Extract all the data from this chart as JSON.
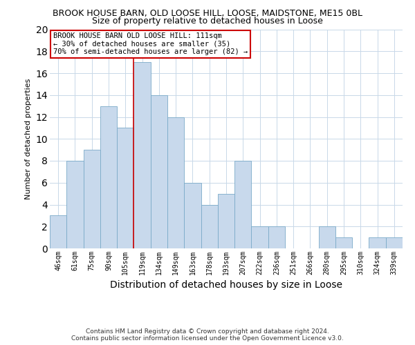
{
  "title": "BROOK HOUSE BARN, OLD LOOSE HILL, LOOSE, MAIDSTONE, ME15 0BL",
  "subtitle": "Size of property relative to detached houses in Loose",
  "xlabel": "Distribution of detached houses by size in Loose",
  "ylabel": "Number of detached properties",
  "bar_labels": [
    "46sqm",
    "61sqm",
    "75sqm",
    "90sqm",
    "105sqm",
    "119sqm",
    "134sqm",
    "149sqm",
    "163sqm",
    "178sqm",
    "193sqm",
    "207sqm",
    "222sqm",
    "236sqm",
    "251sqm",
    "266sqm",
    "280sqm",
    "295sqm",
    "310sqm",
    "324sqm",
    "339sqm"
  ],
  "bar_values": [
    3,
    8,
    9,
    13,
    11,
    17,
    14,
    12,
    6,
    4,
    5,
    8,
    2,
    2,
    0,
    0,
    2,
    1,
    0,
    1,
    1
  ],
  "bar_color": "#c8d9ec",
  "bar_edge_color": "#7aaac8",
  "ylim": [
    0,
    20
  ],
  "yticks": [
    0,
    2,
    4,
    6,
    8,
    10,
    12,
    14,
    16,
    18,
    20
  ],
  "vline_x_index": 5,
  "vline_color": "#cc0000",
  "annotation_title": "BROOK HOUSE BARN OLD LOOSE HILL: 111sqm",
  "annotation_line1": "← 30% of detached houses are smaller (35)",
  "annotation_line2": "70% of semi-detached houses are larger (82) →",
  "annotation_box_color": "#ffffff",
  "annotation_box_edge": "#cc0000",
  "footer_line1": "Contains HM Land Registry data © Crown copyright and database right 2024.",
  "footer_line2": "Contains public sector information licensed under the Open Government Licence v3.0.",
  "background_color": "#ffffff",
  "grid_color": "#c8d8e8",
  "title_fontsize": 9,
  "subtitle_fontsize": 9,
  "xlabel_fontsize": 10,
  "ylabel_fontsize": 8,
  "tick_fontsize": 7,
  "annotation_fontsize": 7.5,
  "footer_fontsize": 6.5
}
